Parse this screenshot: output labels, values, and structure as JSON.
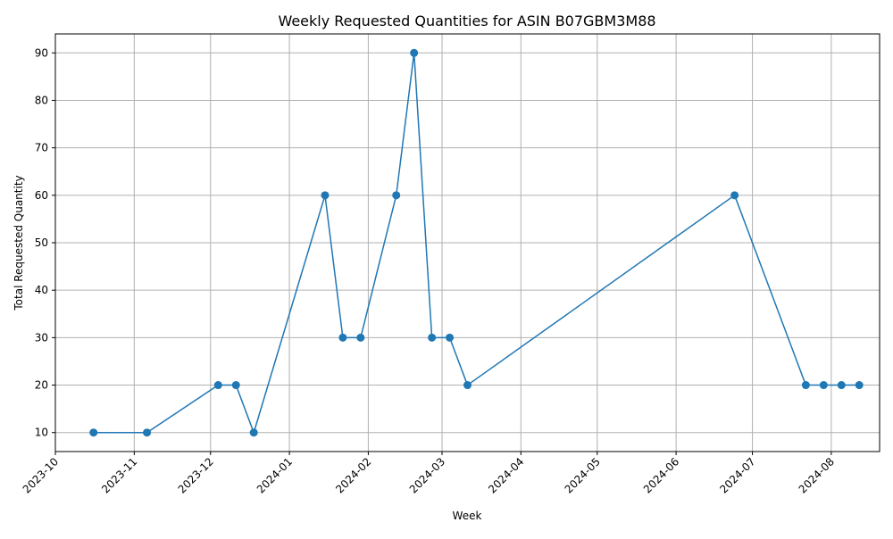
{
  "chart_data": {
    "type": "line",
    "title": "Weekly Requested Quantities for ASIN B07GBM3M88",
    "xlabel": "Week",
    "ylabel": "Total Requested Quantity",
    "x_ticks": [
      "2023-10",
      "2023-11",
      "2023-12",
      "2024-01",
      "2024-02",
      "2024-03",
      "2024-04",
      "2024-05",
      "2024-06",
      "2024-07",
      "2024-08"
    ],
    "y_ticks": [
      10,
      20,
      30,
      40,
      50,
      60,
      70,
      80,
      90
    ],
    "xlim": [
      "2023-10-01",
      "2024-08-20"
    ],
    "ylim": [
      6,
      94
    ],
    "grid": true,
    "series": [
      {
        "color": "#1f77b4",
        "marker": "circle",
        "points": [
          {
            "x": "2023-10-16",
            "y": 10
          },
          {
            "x": "2023-11-06",
            "y": 10
          },
          {
            "x": "2023-12-04",
            "y": 20
          },
          {
            "x": "2023-12-11",
            "y": 20
          },
          {
            "x": "2023-12-18",
            "y": 10
          },
          {
            "x": "2024-01-15",
            "y": 60
          },
          {
            "x": "2024-01-22",
            "y": 30
          },
          {
            "x": "2024-01-29",
            "y": 30
          },
          {
            "x": "2024-02-12",
            "y": 60
          },
          {
            "x": "2024-02-19",
            "y": 90
          },
          {
            "x": "2024-02-26",
            "y": 30
          },
          {
            "x": "2024-03-04",
            "y": 30
          },
          {
            "x": "2024-03-11",
            "y": 20
          },
          {
            "x": "2024-06-24",
            "y": 60
          },
          {
            "x": "2024-07-22",
            "y": 20
          },
          {
            "x": "2024-07-29",
            "y": 20
          },
          {
            "x": "2024-08-05",
            "y": 20
          },
          {
            "x": "2024-08-12",
            "y": 20
          }
        ]
      }
    ]
  }
}
